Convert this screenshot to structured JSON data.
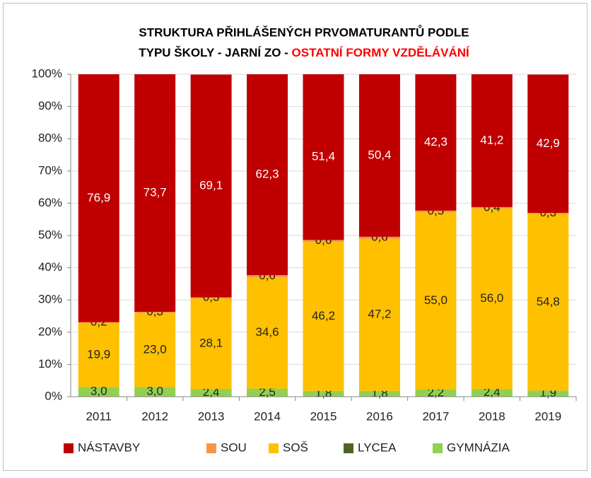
{
  "chart_data": {
    "type": "stacked_bar",
    "title": [
      "STRUKTURA PŘIHLÁŠENÝCH PRVOMATURANTŮ PODLE",
      "TYPU ŠKOLY - JARNÍ ZO - ",
      "OSTATNÍ FORMY VZDĚLÁVÁNÍ"
    ],
    "title_colors": [
      "#000000",
      "#000000",
      "#ff0000"
    ],
    "categories": [
      "2011",
      "2012",
      "2013",
      "2014",
      "2015",
      "2016",
      "2017",
      "2018",
      "2019"
    ],
    "series": [
      {
        "name": "GYMNÁZIA",
        "color": "#92d050",
        "label_color": "#222222",
        "values": [
          3.0,
          3.0,
          2.4,
          2.5,
          1.8,
          1.8,
          2.2,
          2.4,
          1.9
        ],
        "value_labels": [
          "3,0",
          "3,0",
          "2,4",
          "2,5",
          "1,8",
          "1,8",
          "2,2",
          "2,4",
          "1,9"
        ]
      },
      {
        "name": "LYCEA",
        "color": "#4f6228",
        "values": [
          0,
          0,
          0,
          0,
          0,
          0,
          0,
          0,
          0
        ]
      },
      {
        "name": "SOŠ",
        "color": "#ffc000",
        "label_color": "#222222",
        "values": [
          19.9,
          23.0,
          28.1,
          34.6,
          46.2,
          47.2,
          55.0,
          56.0,
          54.8
        ],
        "value_labels": [
          "19,9",
          "23,0",
          "28,1",
          "34,6",
          "46,2",
          "47,2",
          "55,0",
          "56,0",
          "54,8"
        ]
      },
      {
        "name": "SOU",
        "color": "#f79646",
        "label_color": "#222222",
        "values": [
          0.2,
          0.3,
          0.3,
          0.6,
          0.6,
          0.6,
          0.5,
          0.4,
          0.3
        ],
        "value_labels": [
          "0,2",
          "0,3",
          "0,3",
          "0,6",
          "0,6",
          "0,6",
          "0,5",
          "0,4",
          "0,3"
        ]
      },
      {
        "name": "NÁSTAVBY",
        "color": "#c00000",
        "label_color": "#ffffff",
        "values": [
          76.9,
          73.7,
          69.1,
          62.3,
          51.4,
          50.4,
          42.3,
          41.2,
          42.9
        ],
        "value_labels": [
          "76,9",
          "73,7",
          "69,1",
          "62,3",
          "51,4",
          "50,4",
          "42,3",
          "41,2",
          "42,9"
        ]
      }
    ],
    "ylim": [
      0,
      100
    ],
    "yticks": [
      {
        "value": 0,
        "label": "0%"
      },
      {
        "value": 10,
        "label": "10%"
      },
      {
        "value": 20,
        "label": "20%"
      },
      {
        "value": 30,
        "label": "30%"
      },
      {
        "value": 40,
        "label": "40%"
      },
      {
        "value": 50,
        "label": "50%"
      },
      {
        "value": 60,
        "label": "60%"
      },
      {
        "value": 70,
        "label": "70%"
      },
      {
        "value": 80,
        "label": "80%"
      },
      {
        "value": 90,
        "label": "90%"
      },
      {
        "value": 100,
        "label": "100%"
      }
    ],
    "grid": true,
    "legend": "bottom"
  }
}
